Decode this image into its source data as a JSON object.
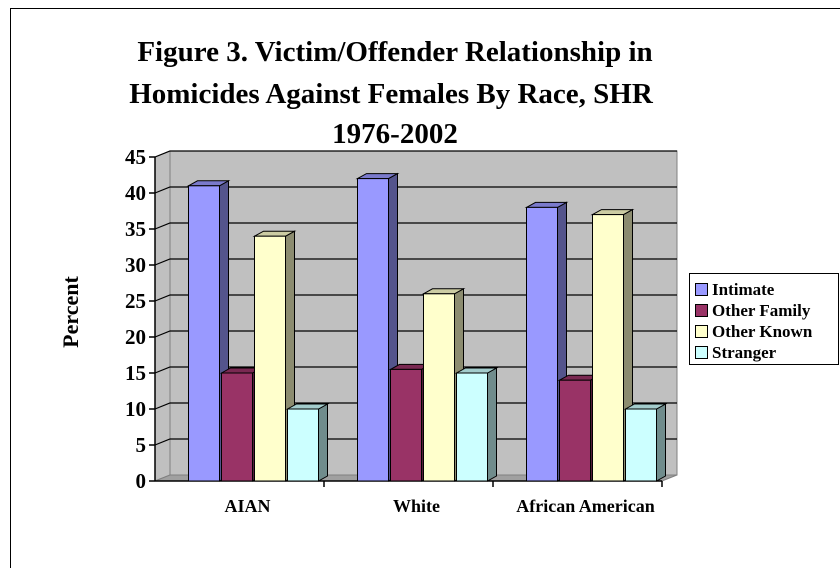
{
  "chart_data": {
    "type": "bar",
    "title_lines": [
      "Figure 3. Victim/Offender Relationship in",
      "Homicides Against Females By Race, SHR",
      "1976-2002"
    ],
    "xlabel": "",
    "ylabel": "Percent",
    "ylim": [
      0,
      45
    ],
    "yticks": [
      0,
      5,
      10,
      15,
      20,
      25,
      30,
      35,
      40,
      45
    ],
    "grid": true,
    "legend_position": "right",
    "categories": [
      "AIAN",
      "White",
      "African American"
    ],
    "series": [
      {
        "name": "Intimate",
        "color": "#9999ff",
        "values": [
          41,
          42,
          38
        ]
      },
      {
        "name": "Other Family",
        "color": "#993366",
        "values": [
          15,
          15.5,
          14
        ]
      },
      {
        "name": "Other Known",
        "color": "#ffffcc",
        "values": [
          34,
          26,
          37
        ]
      },
      {
        "name": "Stranger",
        "color": "#ccffff",
        "values": [
          10,
          15,
          10
        ]
      }
    ]
  }
}
